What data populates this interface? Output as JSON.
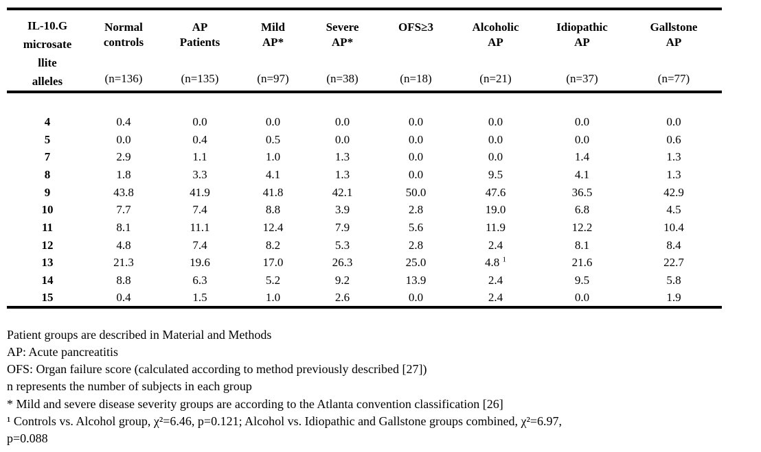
{
  "table": {
    "columns": [
      {
        "lines": [
          "IL-10.G",
          "microsate",
          "llite",
          "alleles"
        ],
        "n": ""
      },
      {
        "lines": [
          "Normal",
          "controls"
        ],
        "n": "(n=136)"
      },
      {
        "lines": [
          "AP",
          "Patients"
        ],
        "n": "(n=135)"
      },
      {
        "lines": [
          "Mild",
          "AP*"
        ],
        "n": "(n=97)"
      },
      {
        "lines": [
          "Severe",
          "AP*"
        ],
        "n": "(n=38)"
      },
      {
        "lines": [
          "OFS≥3"
        ],
        "n": "(n=18)"
      },
      {
        "lines": [
          "Alcoholic",
          "AP"
        ],
        "n": "(n=21)"
      },
      {
        "lines": [
          "Idiopathic",
          "AP"
        ],
        "n": "(n=37)"
      },
      {
        "lines": [
          "Gallstone",
          "AP"
        ],
        "n": "(n=77)"
      }
    ],
    "rows": [
      {
        "allele": "4",
        "values": [
          "0.4",
          "0.0",
          "0.0",
          "0.0",
          "0.0",
          "0.0",
          "0.0",
          "0.0"
        ]
      },
      {
        "allele": "5",
        "values": [
          "0.0",
          "0.4",
          "0.5",
          "0.0",
          "0.0",
          "0.0",
          "0.0",
          "0.6"
        ]
      },
      {
        "allele": "7",
        "values": [
          "2.9",
          "1.1",
          "1.0",
          "1.3",
          "0.0",
          "0.0",
          "1.4",
          "1.3"
        ]
      },
      {
        "allele": "8",
        "values": [
          "1.8",
          "3.3",
          "4.1",
          "1.3",
          "0.0",
          "9.5",
          "4.1",
          "1.3"
        ]
      },
      {
        "allele": "9",
        "values": [
          "43.8",
          "41.9",
          "41.8",
          "42.1",
          "50.0",
          "47.6",
          "36.5",
          "42.9"
        ]
      },
      {
        "allele": "10",
        "values": [
          "7.7",
          "7.4",
          "8.8",
          "3.9",
          "2.8",
          "19.0",
          "6.8",
          "4.5"
        ]
      },
      {
        "allele": "11",
        "values": [
          "8.1",
          "11.1",
          "12.4",
          "7.9",
          "5.6",
          "11.9",
          "12.2",
          "10.4"
        ]
      },
      {
        "allele": "12",
        "values": [
          "4.8",
          "7.4",
          "8.2",
          "5.3",
          "2.8",
          "2.4",
          "8.1",
          "8.4"
        ]
      },
      {
        "allele": "13",
        "values": [
          "21.3",
          "19.6",
          "17.0",
          "26.3",
          "25.0",
          "4.8",
          "21.6",
          "22.7"
        ],
        "markers": {
          "5": "1"
        }
      },
      {
        "allele": "14",
        "values": [
          "8.8",
          "6.3",
          "5.2",
          "9.2",
          "13.9",
          "2.4",
          "9.5",
          "5.8"
        ]
      },
      {
        "allele": "15",
        "values": [
          "0.4",
          "1.5",
          "1.0",
          "2.6",
          "0.0",
          "2.4",
          "0.0",
          "1.9"
        ]
      }
    ]
  },
  "footnotes": [
    "Patient groups are described in Material and Methods",
    "AP: Acute pancreatitis",
    "OFS: Organ failure score (calculated according to method previously described [27])",
    "n represents the number of subjects in each group",
    "* Mild and severe disease severity groups are according to the Atlanta convention classification [26]",
    "¹ Controls vs. Alcohol group, χ²=6.46, p=0.121; Alcohol vs. Idiopathic and Gallstone groups combined, χ²=6.97,\np=0.088"
  ]
}
